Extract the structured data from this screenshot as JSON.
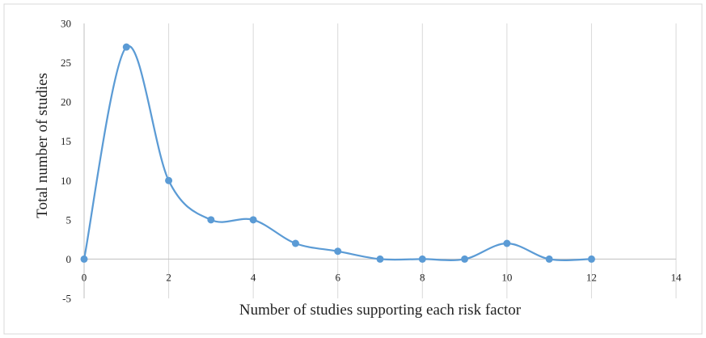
{
  "chart_data": {
    "type": "scatter",
    "title": "",
    "xlabel": "Number of studies supporting each risk factor",
    "ylabel": "Total number of studies",
    "xlim": [
      0,
      14
    ],
    "ylim": [
      -5,
      30
    ],
    "x_ticks": [
      0,
      2,
      4,
      6,
      8,
      10,
      12,
      14
    ],
    "y_ticks": [
      -5,
      0,
      5,
      10,
      15,
      20,
      25,
      30
    ],
    "grid": "vertical",
    "legend": "none",
    "line_style": "smooth",
    "series": [
      {
        "color": "#5b9bd5",
        "points": [
          {
            "x": 0,
            "y": 0
          },
          {
            "x": 1,
            "y": 27
          },
          {
            "x": 2,
            "y": 10
          },
          {
            "x": 3,
            "y": 5
          },
          {
            "x": 4,
            "y": 5
          },
          {
            "x": 5,
            "y": 2
          },
          {
            "x": 6,
            "y": 1
          },
          {
            "x": 7,
            "y": 0
          },
          {
            "x": 8,
            "y": 0
          },
          {
            "x": 9,
            "y": 0
          },
          {
            "x": 10,
            "y": 2
          },
          {
            "x": 11,
            "y": 0
          },
          {
            "x": 12,
            "y": 0
          }
        ]
      }
    ]
  }
}
